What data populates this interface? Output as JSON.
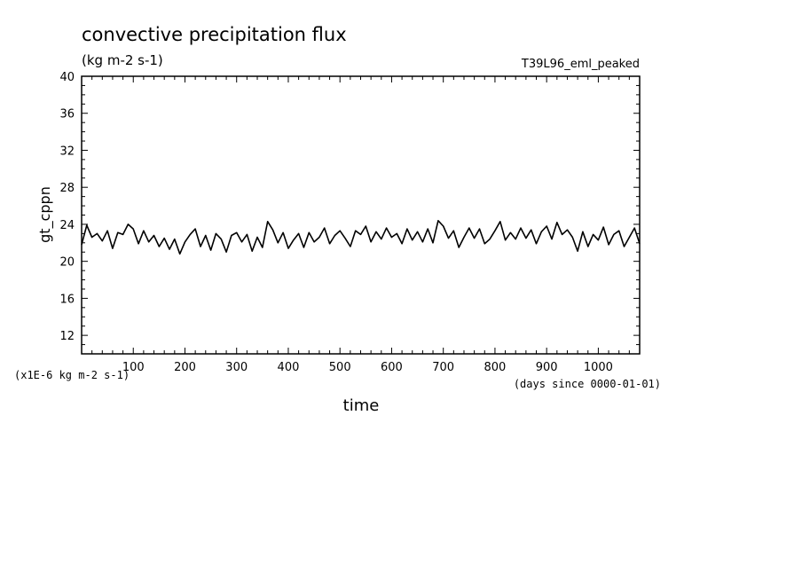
{
  "chart_data": {
    "type": "line",
    "title": "convective precipitation flux",
    "units": "(kg m-2 s-1)",
    "experiment": "T39L96_eml_peaked",
    "ylabel": "gt_cppn",
    "xlabel": "time",
    "x_units": "(days since 0000-01-01)",
    "y_scale_note": "(x1E-6 kg m-2 s-1)",
    "xlim": [
      0,
      1080
    ],
    "ylim": [
      10,
      40
    ],
    "x_ticks": [
      100,
      200,
      300,
      400,
      500,
      600,
      700,
      800,
      900,
      1000
    ],
    "x_tick_labels": [
      "100",
      "200",
      "300",
      "400",
      "500",
      "600",
      "700",
      "800",
      "900",
      "1000"
    ],
    "y_ticks": [
      12,
      16,
      20,
      24,
      28,
      32,
      36,
      40
    ],
    "y_tick_labels": [
      "12",
      "16",
      "20",
      "24",
      "28",
      "32",
      "36",
      "40"
    ],
    "series": [
      {
        "name": "gt_cppn",
        "x": [
          0,
          10,
          20,
          30,
          40,
          50,
          60,
          70,
          80,
          90,
          100,
          110,
          120,
          130,
          140,
          150,
          160,
          170,
          180,
          190,
          200,
          210,
          220,
          230,
          240,
          250,
          260,
          270,
          280,
          290,
          300,
          310,
          320,
          330,
          340,
          350,
          360,
          370,
          380,
          390,
          400,
          410,
          420,
          430,
          440,
          450,
          460,
          470,
          480,
          490,
          500,
          510,
          520,
          530,
          540,
          550,
          560,
          570,
          580,
          590,
          600,
          610,
          620,
          630,
          640,
          650,
          660,
          670,
          680,
          690,
          700,
          710,
          720,
          730,
          740,
          750,
          760,
          770,
          780,
          790,
          800,
          810,
          820,
          830,
          840,
          850,
          860,
          870,
          880,
          890,
          900,
          910,
          920,
          930,
          940,
          950,
          960,
          970,
          980,
          990,
          1000,
          1010,
          1020,
          1030,
          1040,
          1050,
          1060,
          1070,
          1080
        ],
        "values": [
          21.8,
          23.9,
          22.6,
          23.0,
          22.2,
          23.3,
          21.4,
          23.1,
          22.9,
          24.0,
          23.5,
          21.9,
          23.3,
          22.1,
          22.8,
          21.6,
          22.5,
          21.3,
          22.4,
          20.8,
          22.1,
          22.9,
          23.5,
          21.6,
          22.8,
          21.2,
          23.0,
          22.4,
          21.0,
          22.8,
          23.1,
          22.1,
          22.9,
          21.1,
          22.6,
          21.5,
          24.3,
          23.4,
          22.0,
          23.1,
          21.4,
          22.3,
          23.0,
          21.5,
          23.1,
          22.1,
          22.6,
          23.6,
          21.9,
          22.8,
          23.3,
          22.5,
          21.6,
          23.3,
          22.9,
          23.8,
          22.1,
          23.2,
          22.4,
          23.6,
          22.6,
          23.0,
          21.9,
          23.5,
          22.3,
          23.2,
          22.1,
          23.5,
          22.0,
          24.4,
          23.8,
          22.5,
          23.3,
          21.5,
          22.6,
          23.6,
          22.5,
          23.5,
          21.9,
          22.4,
          23.3,
          24.3,
          22.3,
          23.1,
          22.4,
          23.6,
          22.5,
          23.4,
          21.9,
          23.2,
          23.8,
          22.4,
          24.2,
          22.9,
          23.4,
          22.6,
          21.1,
          23.2,
          21.6,
          22.9,
          22.3,
          23.7,
          21.8,
          22.9,
          23.3,
          21.6,
          22.6,
          23.6,
          21.9
        ]
      }
    ]
  }
}
